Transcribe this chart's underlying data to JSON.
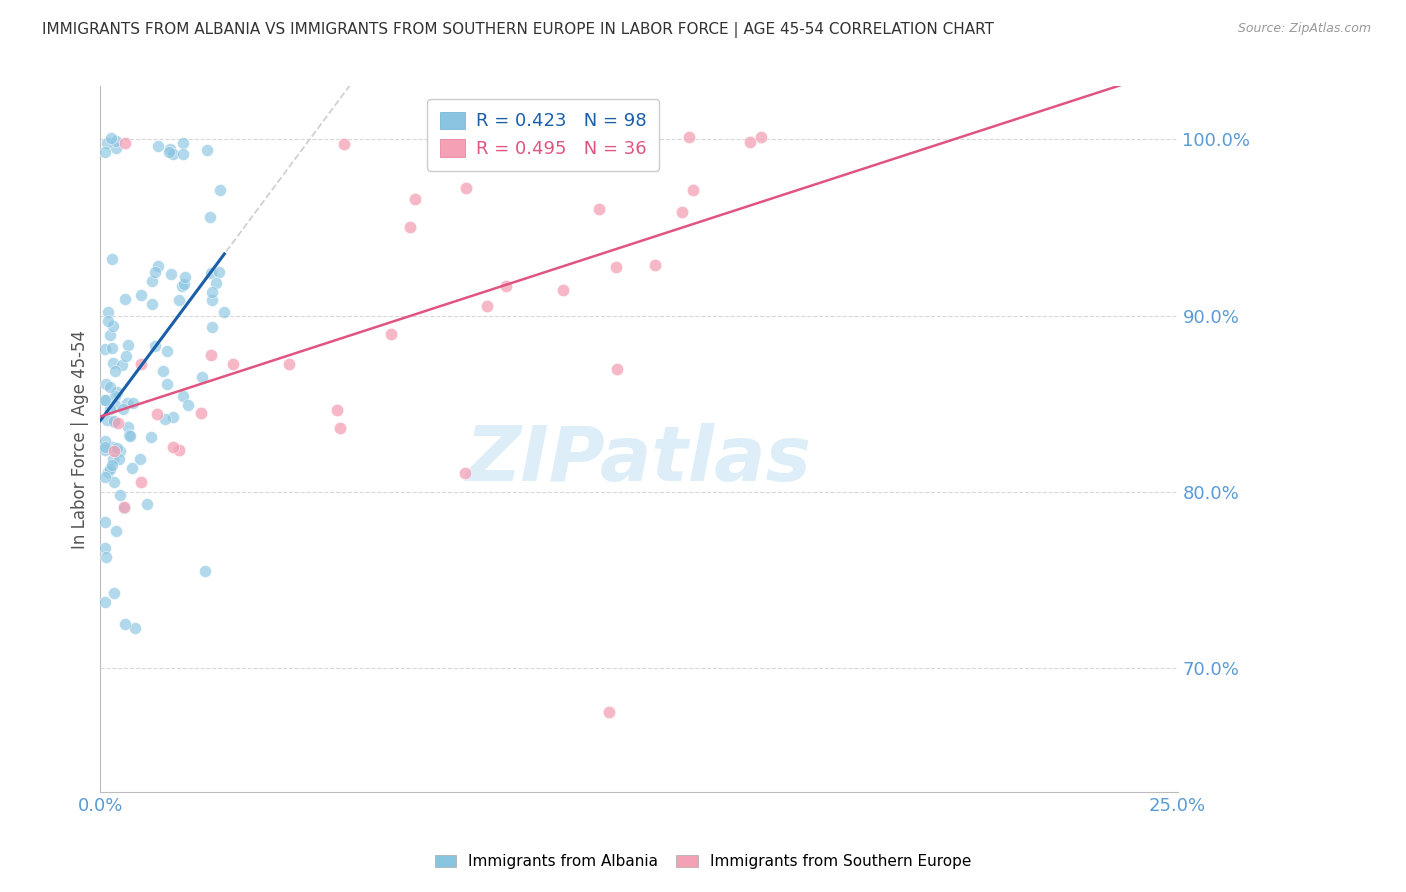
{
  "title": "IMMIGRANTS FROM ALBANIA VS IMMIGRANTS FROM SOUTHERN EUROPE IN LABOR FORCE | AGE 45-54 CORRELATION CHART",
  "source": "Source: ZipAtlas.com",
  "ylabel": "In Labor Force | Age 45-54",
  "xlim": [
    0.0,
    0.25
  ],
  "ylim": [
    0.63,
    1.03
  ],
  "yticks": [
    0.7,
    0.8,
    0.9,
    1.0
  ],
  "ytick_labels": [
    "70.0%",
    "80.0%",
    "90.0%",
    "100.0%"
  ],
  "albania_color": "#89c4e1",
  "albania_color_edge": "#6aaed6",
  "southern_color": "#f4a0b5",
  "southern_color_edge": "#e8779a",
  "albania_line_color": "#1a5fa8",
  "southern_line_color": "#e05580",
  "dash_color": "#c8c8c8",
  "watermark_color": "#ddeef8",
  "axis_label_color": "#5b9bd5",
  "ylabel_color": "#555555",
  "background_color": "#ffffff",
  "grid_color": "#d8d8d8",
  "legend_border_color": "#cccccc",
  "title_color": "#333333",
  "source_color": "#999999",
  "albania_R": "0.423",
  "albania_N": "98",
  "southern_R": "0.495",
  "southern_N": "36",
  "albania_label": "Immigrants from Albania",
  "southern_label": "Immigrants from Southern Europe"
}
